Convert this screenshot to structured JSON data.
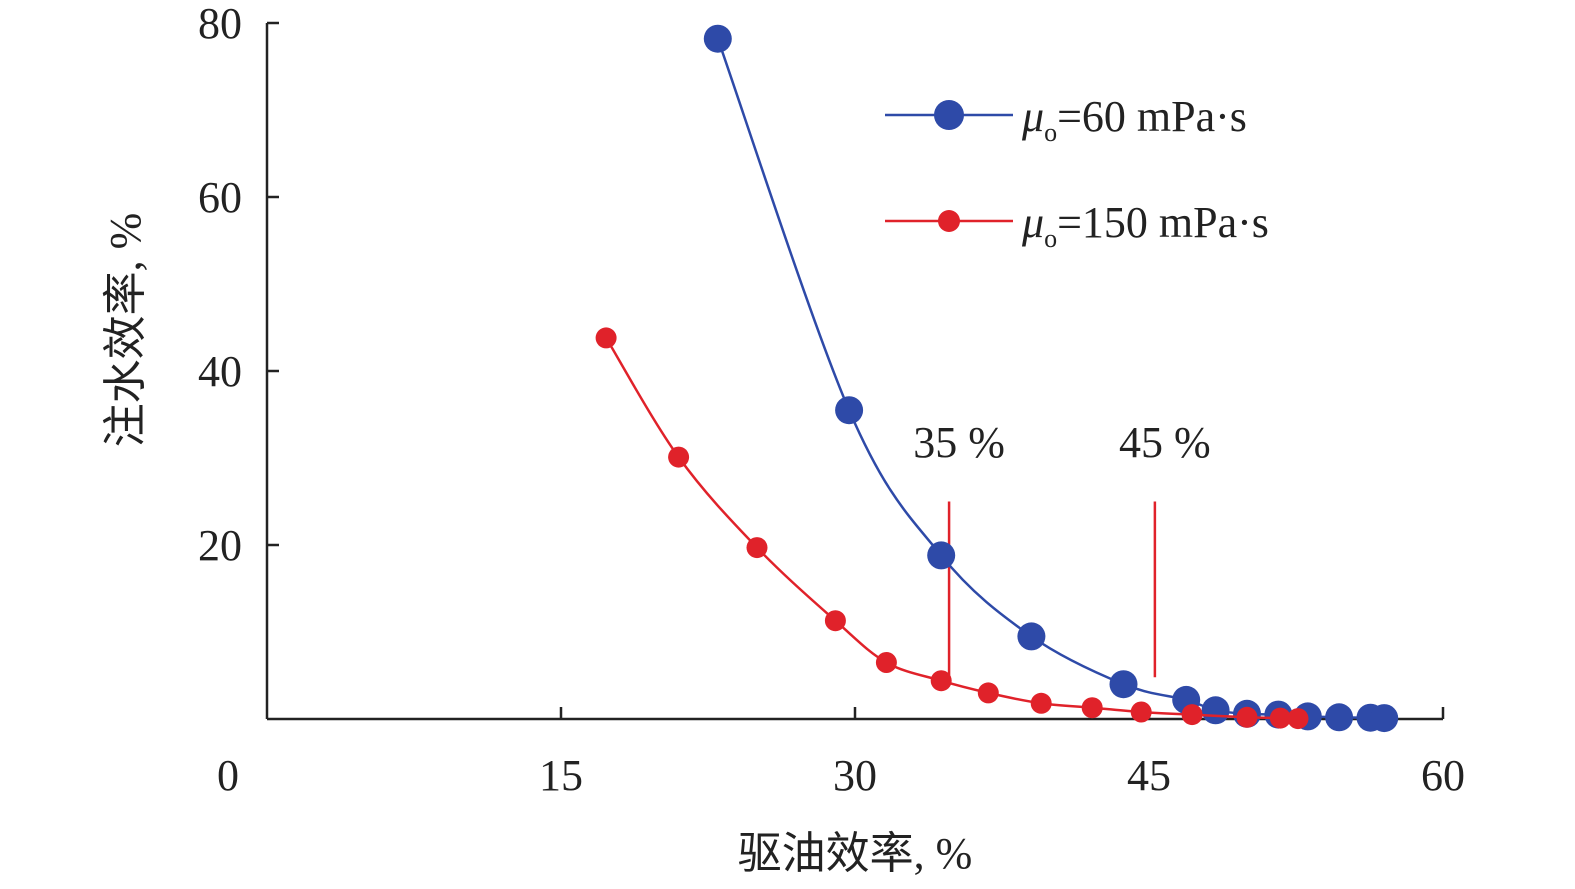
{
  "chart_data": {
    "type": "line",
    "title": "",
    "xlabel": "驱油效率, %",
    "ylabel": "注水效率, %",
    "xlim": [
      0,
      60
    ],
    "ylim": [
      0,
      80
    ],
    "xticks": [
      0,
      15,
      30,
      45,
      60
    ],
    "yticks": [
      20,
      40,
      60,
      80
    ],
    "xtick_labels": [
      "0",
      "15",
      "30",
      "45",
      "60"
    ],
    "ytick_labels": [
      "20",
      "40",
      "60",
      "80"
    ],
    "grid": false,
    "legend_position": "top-right",
    "series": [
      {
        "name": "μo=60 mPa·s",
        "legend_mu": "μ",
        "legend_sub": "o",
        "legend_rest": "=60 mPa·s",
        "color": "#2e4aa8",
        "marker": "large-circle",
        "x": [
          23.0,
          29.7,
          34.4,
          39.0,
          43.7,
          46.9,
          48.4,
          50.0,
          51.6,
          53.1,
          54.7,
          56.3,
          57.0
        ],
        "y": [
          78.2,
          35.5,
          18.8,
          9.5,
          4.0,
          2.2,
          1.0,
          0.6,
          0.5,
          0.3,
          0.2,
          0.15,
          0.1
        ]
      },
      {
        "name": "μo=150 mPa·s",
        "legend_mu": "μ",
        "legend_sub": "o",
        "legend_rest": "=150 mPa·s",
        "color": "#e0222a",
        "marker": "small-circle",
        "x": [
          17.3,
          21.0,
          25.0,
          29.0,
          31.6,
          34.4,
          36.8,
          39.5,
          42.1,
          44.6,
          47.2,
          50.0,
          51.7,
          52.6
        ],
        "y": [
          43.8,
          30.1,
          19.7,
          11.3,
          6.5,
          4.4,
          3.0,
          1.8,
          1.3,
          0.8,
          0.5,
          0.2,
          0.1,
          0.05
        ]
      }
    ],
    "annotations": [
      {
        "label": "35 %",
        "x": 34.8,
        "y_from": 5.0,
        "y_to": 25.0,
        "color": "#e0222a"
      },
      {
        "label": "45 %",
        "x": 45.3,
        "y_from": 4.8,
        "y_to": 25.0,
        "color": "#e0222a"
      }
    ]
  }
}
